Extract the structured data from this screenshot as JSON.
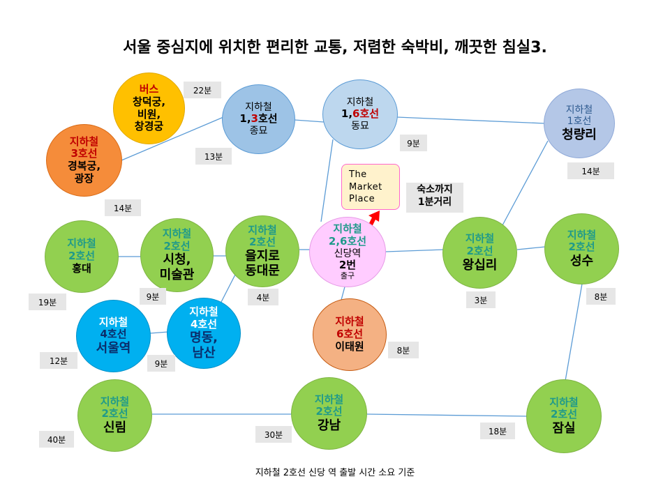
{
  "title": "서울 중심지에 위치한 편리한 교통, 저렴한 숙박비, 깨끗한 침실3.",
  "footer": "지하철 2호선 신당 역 출발 시간 소요 기준",
  "colors": {
    "green": "#92d050",
    "teal_text": "#1f9a8a",
    "red_text": "#c00000",
    "light_blue": "#9dc3e6",
    "cyan": "#00b0f0",
    "yellow": "#ffc000",
    "orange": "#f4b183",
    "pink": "#ffccff",
    "market_bg": "#fff2cc",
    "label_bg": "#e6e6e6",
    "connector": "#5b9bd5",
    "arrow": "#ff0000"
  },
  "stations": {
    "bus": {
      "type": "버스",
      "line1": "창덕궁,",
      "line2": "비원,",
      "line3": "창경궁"
    },
    "gyeongbokgung": {
      "l1": "지하철",
      "l2": "3호선",
      "l3": "경복궁,",
      "l4": "광장"
    },
    "jongmyo": {
      "l1": "지하철",
      "l2a": "1,",
      "l2b": "3",
      "l2c": "호선",
      "l3": "종묘"
    },
    "dongmyo": {
      "l1": "지하철",
      "l2a": "1,",
      "l2b": "6호선",
      "l3": "동묘"
    },
    "cheongnyangni": {
      "l1": "지하철",
      "l2": "1호선",
      "l3": "청량리"
    },
    "hongdae": {
      "l1": "지하철",
      "l2": "2호선",
      "l3": "홍대"
    },
    "cityhall": {
      "l1": "지하철",
      "l2": "2호선",
      "l3": "시청,",
      "l4": "미술관"
    },
    "euljiro": {
      "l1": "지하철",
      "l2": "2호선",
      "l3": "을지로",
      "l4": "동대문"
    },
    "sindang": {
      "l1": "지하철",
      "l2": "2,6호선",
      "l3": "신당역",
      "l4": "2번",
      "l5": "출구"
    },
    "wangsimni": {
      "l1": "지하철",
      "l2": "2호선",
      "l3": "왕십리"
    },
    "seongsu": {
      "l1": "지하철",
      "l2": "2호선",
      "l3": "성수"
    },
    "seoulstation": {
      "l1": "지하철",
      "l2": "4호선",
      "l3": "서울역"
    },
    "myeongdong": {
      "l1": "지하철",
      "l2": "4호선",
      "l3": "명동,",
      "l4": "남산"
    },
    "itaewon": {
      "l1": "지하철",
      "l2": "6호선",
      "l3": "이태원"
    },
    "sillim": {
      "l1": "지하철",
      "l2": "2호선",
      "l3": "신림"
    },
    "gangnam": {
      "l1": "지하철",
      "l2": "2호선",
      "l3": "강남"
    },
    "jamsil": {
      "l1": "지하철",
      "l2": "2호선",
      "l3": "잠실"
    }
  },
  "market": {
    "line1": "The",
    "line2": "Market",
    "line3": "Place"
  },
  "dorm": {
    "line1": "숙소까지",
    "line2": "1분거리"
  },
  "times": {
    "bus": "22분",
    "jongmyo": "13분",
    "gyeongbokgung": "14분",
    "dongmyo": "9분",
    "cheongnyangni": "14분",
    "hongdae": "19분",
    "cityhall": "9분",
    "euljiro": "4분",
    "wangsimni": "3분",
    "seongsu": "8분",
    "seoulstation": "12분",
    "myeongdong": "9분",
    "itaewon": "8분",
    "sillim": "40분",
    "gangnam": "30분",
    "jamsil": "18분"
  }
}
